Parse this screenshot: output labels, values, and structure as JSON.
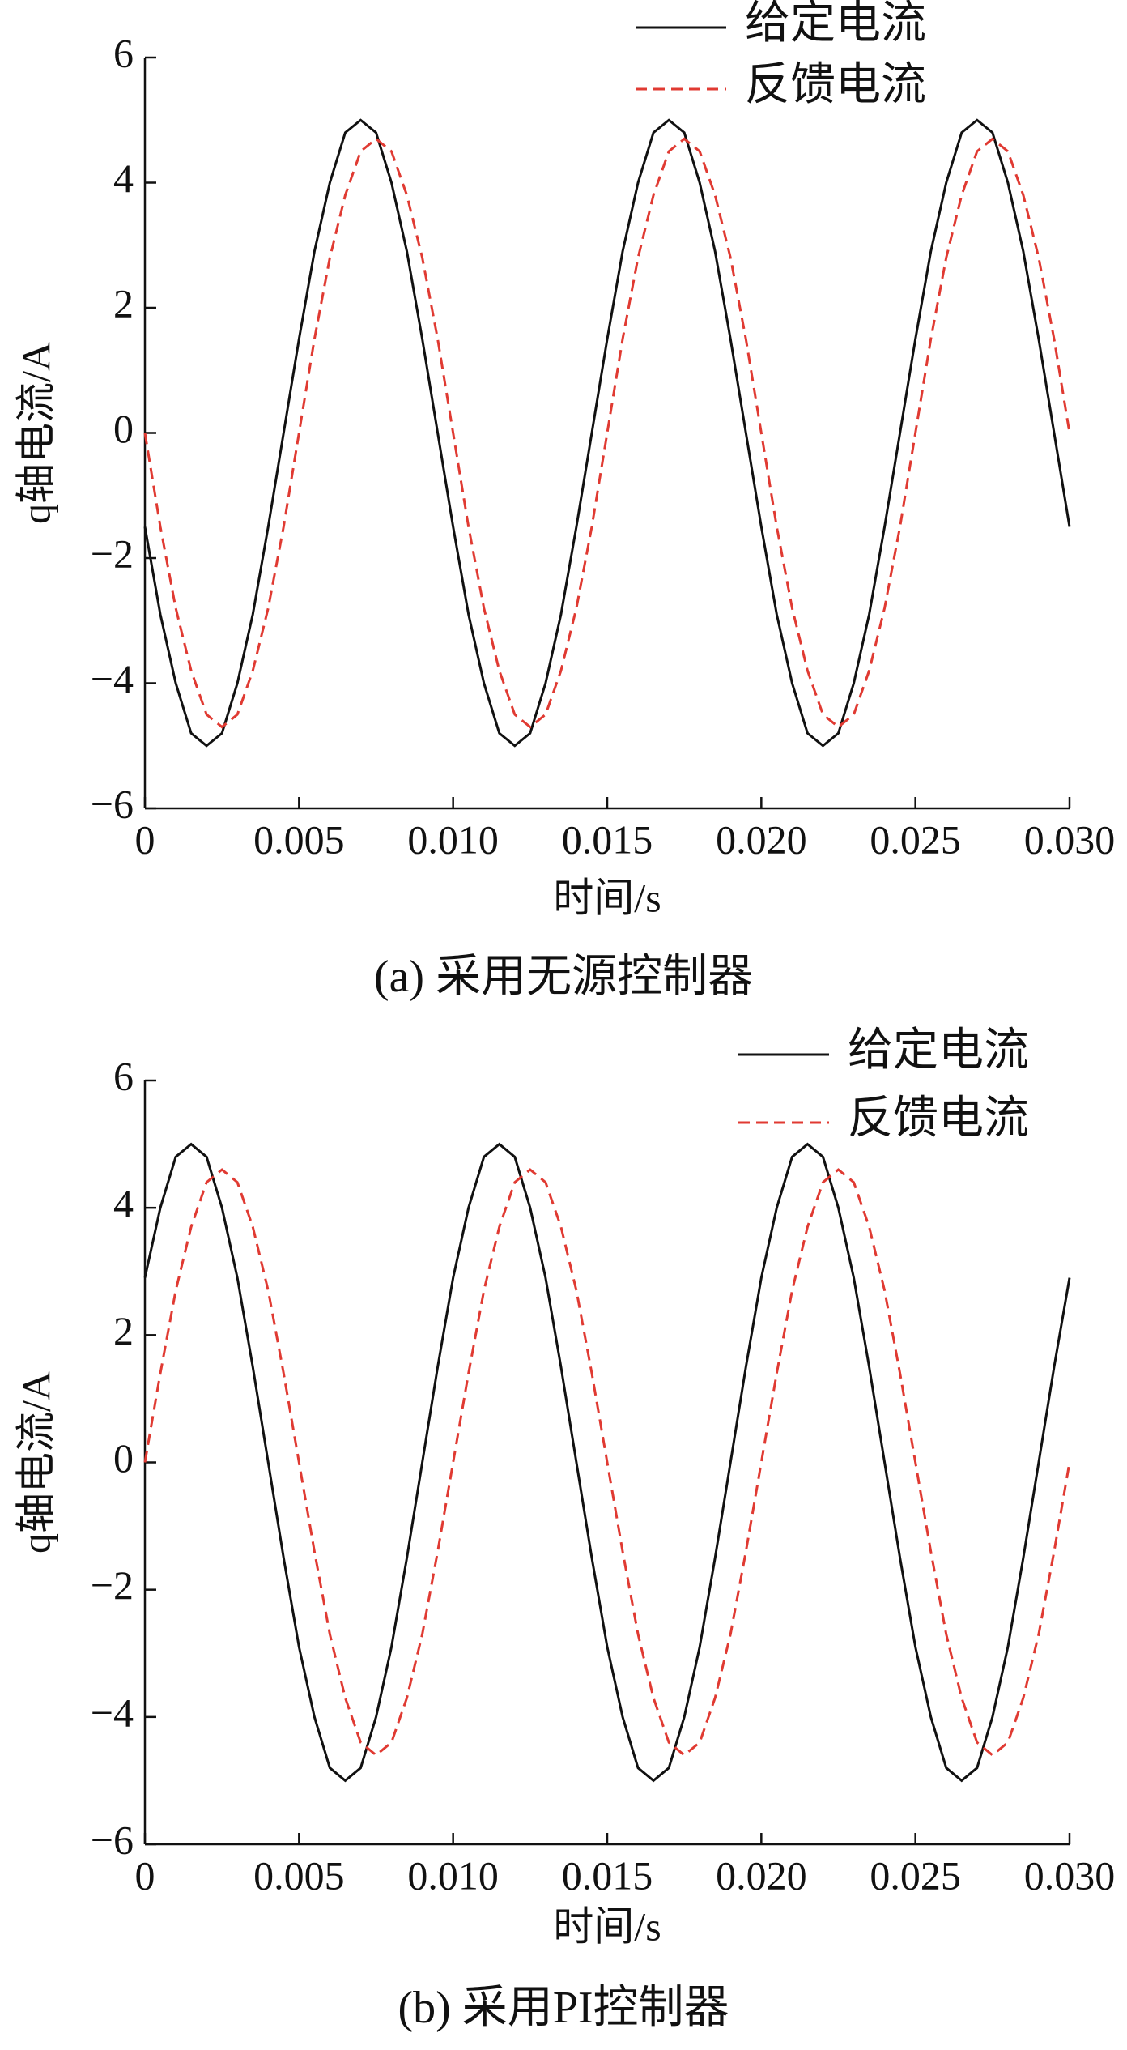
{
  "chart_data": [
    {
      "type": "line",
      "caption": "(a)  采用无源控制器",
      "x_label": "时间/s",
      "y_label": "q轴电流/A",
      "legend": "upper right",
      "x": [
        0,
        0.0005,
        0.001,
        0.0015,
        0.002,
        0.0025,
        0.003,
        0.0035,
        0.004,
        0.0045,
        0.005,
        0.0055,
        0.006,
        0.0065,
        0.007,
        0.0075,
        0.008,
        0.0085,
        0.009,
        0.0095,
        0.01,
        0.0105,
        0.011,
        0.0115,
        0.012,
        0.0125,
        0.013,
        0.0135,
        0.014,
        0.0145,
        0.015,
        0.0155,
        0.016,
        0.0165,
        0.017,
        0.0175,
        0.018,
        0.0185,
        0.019,
        0.0195,
        0.02,
        0.0205,
        0.021,
        0.0215,
        0.022,
        0.0225,
        0.023,
        0.0235,
        0.024,
        0.0245,
        0.025,
        0.0255,
        0.026,
        0.0265,
        0.027,
        0.0275,
        0.028,
        0.0285,
        0.029,
        0.0295,
        0.03
      ],
      "series": [
        {
          "name": "给定电流",
          "color": "#111111",
          "dash": false,
          "values": [
            -1.5,
            -2.9,
            -4.0,
            -4.8,
            -5,
            -4.8,
            -4.0,
            -2.9,
            -1.5,
            0,
            1.5,
            2.9,
            4.0,
            4.8,
            5,
            4.8,
            4.0,
            2.9,
            1.5,
            0,
            -1.5,
            -2.9,
            -4.0,
            -4.8,
            -5,
            -4.8,
            -4.0,
            -2.9,
            -1.5,
            0,
            1.5,
            2.9,
            4.0,
            4.8,
            5,
            4.8,
            4.0,
            2.9,
            1.5,
            0,
            -1.5,
            -2.9,
            -4.0,
            -4.8,
            -5,
            -4.8,
            -4.0,
            -2.9,
            -1.5,
            0,
            1.5,
            2.9,
            4.0,
            4.8,
            5,
            4.8,
            4.0,
            2.9,
            1.5,
            0,
            -1.5
          ]
        },
        {
          "name": "反馈电流",
          "color": "#e03a32",
          "dash": true,
          "values": [
            0,
            -1.5,
            -2.8,
            -3.8,
            -4.5,
            -4.7,
            -4.5,
            -3.8,
            -2.8,
            -1.5,
            0,
            1.5,
            2.8,
            3.8,
            4.5,
            4.7,
            4.5,
            3.8,
            2.8,
            1.5,
            0,
            -1.5,
            -2.8,
            -3.8,
            -4.5,
            -4.7,
            -4.5,
            -3.8,
            -2.8,
            -1.5,
            0,
            1.5,
            2.8,
            3.8,
            4.5,
            4.7,
            4.5,
            3.8,
            2.8,
            1.5,
            0,
            -1.5,
            -2.8,
            -3.8,
            -4.5,
            -4.7,
            -4.5,
            -3.8,
            -2.8,
            -1.5,
            0,
            1.5,
            2.8,
            3.8,
            4.5,
            4.7,
            4.5,
            3.8,
            2.8,
            1.5,
            0
          ]
        }
      ],
      "xlim": [
        0,
        0.03
      ],
      "ylim": [
        -6,
        6
      ],
      "xticks": [
        0,
        0.005,
        {
          "value": 0.01,
          "label": "0.010"
        },
        0.015,
        {
          "value": 0.02,
          "label": "0.020"
        },
        0.025,
        {
          "value": 0.03,
          "label": "0.030"
        }
      ],
      "yticks": [
        {
          "value": -6,
          "label": "−6"
        },
        {
          "value": -4,
          "label": "−4"
        },
        {
          "value": -2,
          "label": "−2"
        },
        0,
        2,
        4,
        6
      ]
    },
    {
      "type": "line",
      "caption": "(b)  采用PI控制器",
      "x_label": "时间/s",
      "y_label": "q轴电流/A",
      "legend": "upper right",
      "x": [
        0,
        0.0005,
        0.001,
        0.0015,
        0.002,
        0.0025,
        0.003,
        0.0035,
        0.004,
        0.0045,
        0.005,
        0.0055,
        0.006,
        0.0065,
        0.007,
        0.0075,
        0.008,
        0.0085,
        0.009,
        0.0095,
        0.01,
        0.0105,
        0.011,
        0.0115,
        0.012,
        0.0125,
        0.013,
        0.0135,
        0.014,
        0.0145,
        0.015,
        0.0155,
        0.016,
        0.0165,
        0.017,
        0.0175,
        0.018,
        0.0185,
        0.019,
        0.0195,
        0.02,
        0.0205,
        0.021,
        0.0215,
        0.022,
        0.0225,
        0.023,
        0.0235,
        0.024,
        0.0245,
        0.025,
        0.0255,
        0.026,
        0.0265,
        0.027,
        0.0275,
        0.028,
        0.0285,
        0.029,
        0.0295,
        0.03
      ],
      "series": [
        {
          "name": "给定电流",
          "color": "#111111",
          "dash": false,
          "values": [
            2.9,
            4.0,
            4.8,
            5,
            4.8,
            4.0,
            2.9,
            1.5,
            0,
            -1.5,
            -2.9,
            -4.0,
            -4.8,
            -5,
            -4.8,
            -4.0,
            -2.9,
            -1.5,
            0,
            1.5,
            2.9,
            4.0,
            4.8,
            5,
            4.8,
            4.0,
            2.9,
            1.5,
            0,
            -1.5,
            -2.9,
            -4.0,
            -4.8,
            -5,
            -4.8,
            -4.0,
            -2.9,
            -1.5,
            0,
            1.5,
            2.9,
            4.0,
            4.8,
            5,
            4.8,
            4.0,
            2.9,
            1.5,
            0,
            -1.5,
            -2.9,
            -4.0,
            -4.8,
            -5,
            -4.8,
            -4.0,
            -2.9,
            -1.5,
            0,
            1.5,
            2.9
          ]
        },
        {
          "name": "反馈电流",
          "color": "#e03a32",
          "dash": true,
          "values": [
            0,
            1.4,
            2.7,
            3.7,
            4.4,
            4.6,
            4.4,
            3.7,
            2.7,
            1.4,
            0,
            -1.4,
            -2.7,
            -3.7,
            -4.4,
            -4.6,
            -4.4,
            -3.7,
            -2.7,
            -1.4,
            0,
            1.4,
            2.7,
            3.7,
            4.4,
            4.6,
            4.4,
            3.7,
            2.7,
            1.4,
            0,
            -1.4,
            -2.7,
            -3.7,
            -4.4,
            -4.6,
            -4.4,
            -3.7,
            -2.7,
            -1.4,
            0,
            1.4,
            2.7,
            3.7,
            4.4,
            4.6,
            4.4,
            3.7,
            2.7,
            1.4,
            0,
            -1.4,
            -2.7,
            -3.7,
            -4.4,
            -4.6,
            -4.4,
            -3.7,
            -2.7,
            -1.4,
            0
          ]
        }
      ],
      "xlim": [
        0,
        0.03
      ],
      "ylim": [
        -6,
        6
      ],
      "xticks": [
        0,
        0.005,
        {
          "value": 0.01,
          "label": "0.010"
        },
        0.015,
        {
          "value": 0.02,
          "label": "0.020"
        },
        0.025,
        {
          "value": 0.03,
          "label": "0.030"
        }
      ],
      "yticks": [
        {
          "value": -6,
          "label": "−6"
        },
        {
          "value": -4,
          "label": "−4"
        },
        {
          "value": -2,
          "label": "−2"
        },
        0,
        2,
        4,
        6
      ]
    }
  ]
}
